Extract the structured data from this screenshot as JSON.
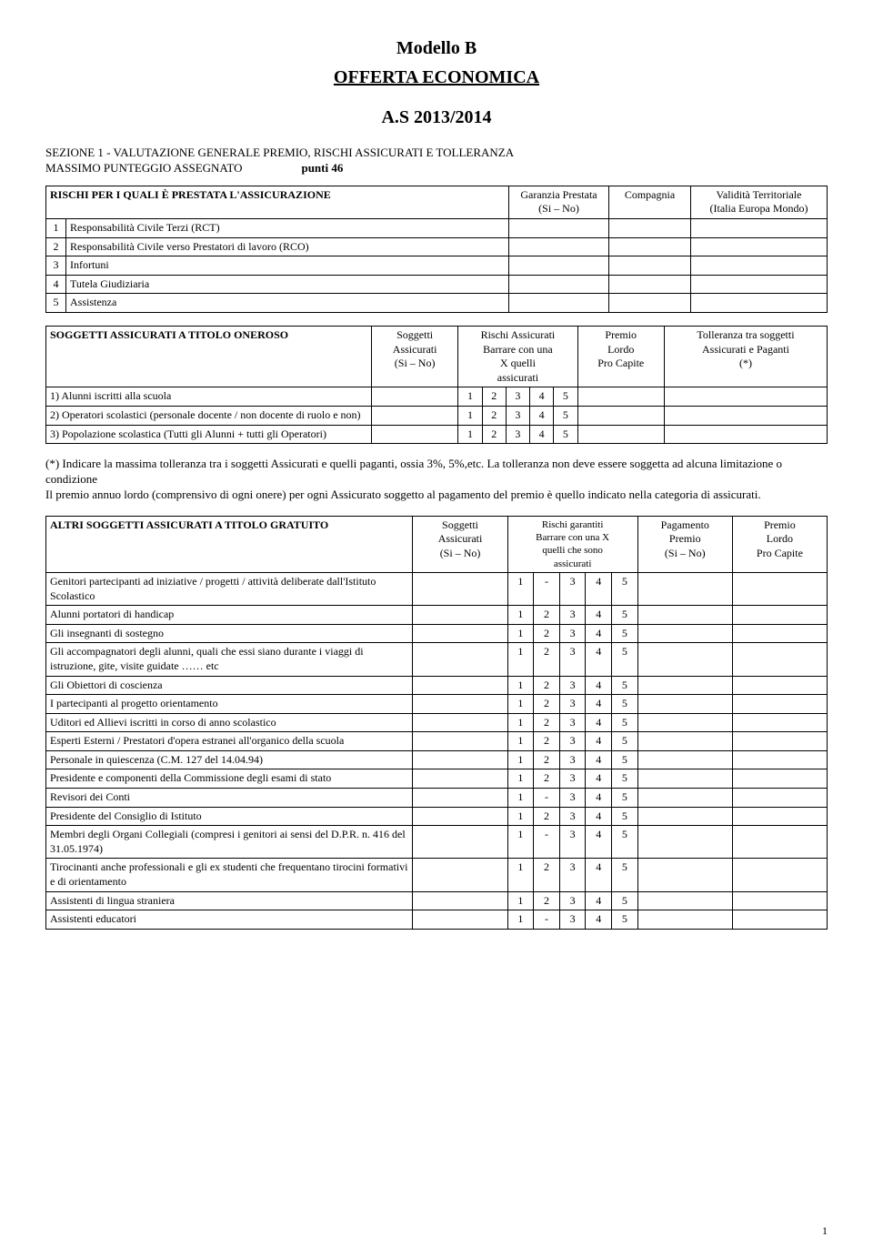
{
  "titles": {
    "modello": "Modello B",
    "offerta": "OFFERTA ECONOMICA",
    "anno": "A.S 2013/2014"
  },
  "section1": {
    "line1": "SEZIONE 1 - VALUTAZIONE GENERALE PREMIO, RISCHI ASSICURATI  E TOLLERANZA",
    "line2a": "MASSIMO PUNTEGGIO ASSEGNATO",
    "line2b": "punti 46"
  },
  "table_rischi": {
    "headers": {
      "c1": "RISCHI PER I QUALI È PRESTATA L'ASSICURAZIONE",
      "c2": "Garanzia Prestata\n(Si – No)",
      "c3": "Compagnia",
      "c4": "Validità Territoriale\n(Italia Europa Mondo)"
    },
    "rows": [
      {
        "n": "1",
        "label": "Responsabilità Civile Terzi (RCT)"
      },
      {
        "n": "2",
        "label": "Responsabilità Civile verso Prestatori di lavoro (RCO)"
      },
      {
        "n": "3",
        "label": "Infortuni"
      },
      {
        "n": "4",
        "label": "Tutela Giudiziaria"
      },
      {
        "n": "5",
        "label": "Assistenza"
      }
    ]
  },
  "table_soggetti_oneroso": {
    "headers": {
      "c1": "SOGGETTI ASSICURATI A TITOLO ONEROSO",
      "c2": "Soggetti\nAssicurati\n(Si – No)",
      "c3": "Rischi Assicurati\nBarrare con una\nX quelli\nassicurati",
      "c4": "Premio\nLordo\nPro Capite",
      "c5": "Tolleranza tra soggetti\nAssicurati e Paganti\n(*)"
    },
    "rows": [
      {
        "label": "1) Alunni iscritti alla scuola",
        "ticks": [
          "1",
          "2",
          "3",
          "4",
          "5"
        ]
      },
      {
        "label": "2) Operatori scolastici (personale docente / non docente di ruolo e non)",
        "ticks": [
          "1",
          "2",
          "3",
          "4",
          "5"
        ]
      },
      {
        "label": "3) Popolazione scolastica (Tutti gli Alunni + tutti gli Operatori)",
        "ticks": [
          "1",
          "2",
          "3",
          "4",
          "5"
        ]
      }
    ]
  },
  "para_note": "(*) Indicare la massima tolleranza tra i soggetti Assicurati e quelli paganti, ossia 3%, 5%,etc. La tolleranza non deve essere soggetta ad alcuna limitazione o condizione\nIl premio annuo lordo (comprensivo di ogni onere) per ogni Assicurato soggetto al pagamento del premio è quello indicato nella categoria di assicurati.",
  "table_soggetti_gratuito": {
    "headers": {
      "c1": "ALTRI SOGGETTI ASSICURATI A TITOLO GRATUITO",
      "c2": "Soggetti\nAssicurati\n(Si – No)",
      "c3": "Rischi garantiti\nBarrare con una X\nquelli che sono\nassicurati",
      "c4": "Pagamento\nPremio\n(Si – No)",
      "c5": "Premio\nLordo\nPro Capite"
    },
    "rows": [
      {
        "label": "Genitori partecipanti ad iniziative / progetti / attività deliberate dall'Istituto Scolastico",
        "ticks": [
          "1",
          "-",
          "3",
          "4",
          "5"
        ]
      },
      {
        "label": "Alunni portatori di handicap",
        "ticks": [
          "1",
          "2",
          "3",
          "4",
          "5"
        ]
      },
      {
        "label": "Gli insegnanti di sostegno",
        "ticks": [
          "1",
          "2",
          "3",
          "4",
          "5"
        ]
      },
      {
        "label": "Gli accompagnatori degli alunni, quali che essi siano durante i viaggi di istruzione, gite, visite guidate …… etc",
        "ticks": [
          "1",
          "2",
          "3",
          "4",
          "5"
        ]
      },
      {
        "label": "Gli Obiettori di coscienza",
        "ticks": [
          "1",
          "2",
          "3",
          "4",
          "5"
        ]
      },
      {
        "label": "I partecipanti al progetto orientamento",
        "ticks": [
          "1",
          "2",
          "3",
          "4",
          "5"
        ]
      },
      {
        "label": "Uditori ed Allievi iscritti in corso di anno scolastico",
        "ticks": [
          "1",
          "2",
          "3",
          "4",
          "5"
        ]
      },
      {
        "label": "Esperti Esterni / Prestatori d'opera estranei all'organico della scuola",
        "ticks": [
          "1",
          "2",
          "3",
          "4",
          "5"
        ]
      },
      {
        "label": "Personale in quiescenza (C.M. 127 del 14.04.94)",
        "ticks": [
          "1",
          "2",
          "3",
          "4",
          "5"
        ]
      },
      {
        "label": "Presidente e componenti della Commissione degli esami di stato",
        "ticks": [
          "1",
          "2",
          "3",
          "4",
          "5"
        ]
      },
      {
        "label": "Revisori dei Conti",
        "ticks": [
          "1",
          "-",
          "3",
          "4",
          "5"
        ]
      },
      {
        "label": "Presidente del Consiglio di Istituto",
        "ticks": [
          "1",
          "2",
          "3",
          "4",
          "5"
        ]
      },
      {
        "label": "Membri degli Organi Collegiali (compresi i genitori ai sensi del D.P.R. n. 416 del 31.05.1974)",
        "ticks": [
          "1",
          "-",
          "3",
          "4",
          "5"
        ]
      },
      {
        "label": "Tirocinanti anche professionali e gli ex studenti che frequentano tirocini formativi e di orientamento",
        "ticks": [
          "1",
          "2",
          "3",
          "4",
          "5"
        ]
      },
      {
        "label": "Assistenti di lingua straniera",
        "ticks": [
          "1",
          "2",
          "3",
          "4",
          "5"
        ]
      },
      {
        "label": "Assistenti educatori",
        "ticks": [
          "1",
          "-",
          "3",
          "4",
          "5"
        ]
      }
    ]
  },
  "page_number": "1"
}
